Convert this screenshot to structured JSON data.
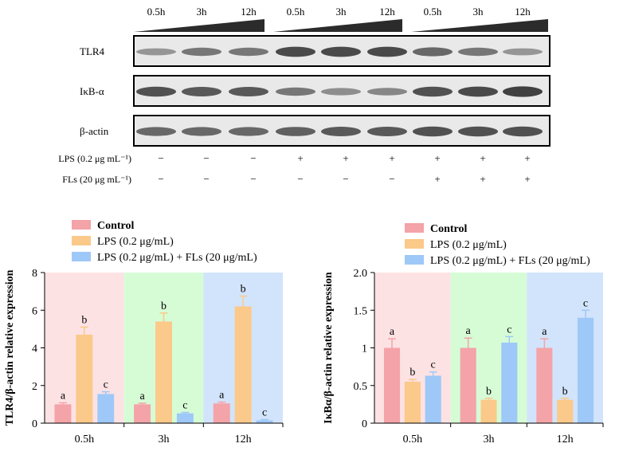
{
  "blot": {
    "time_labels": [
      "0.5h",
      "3h",
      "12h",
      "0.5h",
      "3h",
      "12h",
      "0.5h",
      "3h",
      "12h"
    ],
    "rows": [
      {
        "label": "TLR4",
        "bands": [
          0.35,
          0.55,
          0.55,
          0.85,
          0.85,
          0.85,
          0.65,
          0.55,
          0.35
        ]
      },
      {
        "label": "IκB-α",
        "bands": [
          0.8,
          0.75,
          0.75,
          0.55,
          0.4,
          0.45,
          0.8,
          0.85,
          0.9
        ]
      },
      {
        "label": "β-actin",
        "bands": [
          0.65,
          0.65,
          0.65,
          0.7,
          0.75,
          0.75,
          0.8,
          0.8,
          0.8
        ]
      }
    ],
    "treatments": [
      {
        "label": "LPS (0.2 μg mL⁻¹)",
        "marks": [
          "−",
          "−",
          "−",
          "+",
          "+",
          "+",
          "+",
          "+",
          "+"
        ]
      },
      {
        "label": "FLs (20 μg mL⁻¹)",
        "marks": [
          "−",
          "−",
          "−",
          "−",
          "−",
          "−",
          "+",
          "+",
          "+"
        ]
      }
    ]
  },
  "chart_data": [
    {
      "type": "bar",
      "categories": [
        "0.5h",
        "3h",
        "12h"
      ],
      "ylabel": "TLR4/β-actin relative expression",
      "ylim": [
        0,
        8
      ],
      "yticks": [
        "0",
        "2",
        "4",
        "6",
        "8"
      ],
      "legend": "top-left",
      "band_colors": [
        "#fde2e4",
        "#d6fcd6",
        "#d2e4fb"
      ],
      "series": [
        {
          "name": "Control",
          "color": "#f4a3a8",
          "values": [
            1.0,
            1.0,
            1.05
          ],
          "errors": [
            0.08,
            0.06,
            0.07
          ],
          "letters": [
            "a",
            "a",
            "a"
          ]
        },
        {
          "name": "LPS (0.2 μg/mL)",
          "color": "#fbc98a",
          "values": [
            4.7,
            5.4,
            6.2
          ],
          "errors": [
            0.4,
            0.45,
            0.55
          ],
          "letters": [
            "b",
            "b",
            "b"
          ]
        },
        {
          "name": "LPS (0.2 μg/mL) + FLs (20 μg/mL)",
          "color": "#9ec8f7",
          "values": [
            1.55,
            0.52,
            0.15
          ],
          "errors": [
            0.12,
            0.05,
            0.04
          ],
          "letters": [
            "c",
            "c",
            "c"
          ]
        }
      ]
    },
    {
      "type": "bar",
      "categories": [
        "0.5h",
        "3h",
        "12h"
      ],
      "ylabel": "IκBα/β-actin relative expression",
      "ylim": [
        0,
        2.0
      ],
      "yticks": [
        "0",
        "0.5",
        "1",
        "1.5",
        "2.0"
      ],
      "legend": "top-left",
      "band_colors": [
        "#fde2e4",
        "#d6fcd6",
        "#d2e4fb"
      ],
      "series": [
        {
          "name": "Control",
          "color": "#f4a3a8",
          "values": [
            1.0,
            1.0,
            1.0
          ],
          "errors": [
            0.12,
            0.13,
            0.12
          ],
          "letters": [
            "a",
            "a",
            "a"
          ]
        },
        {
          "name": "LPS (0.2 μg/mL)",
          "color": "#fbc98a",
          "values": [
            0.55,
            0.31,
            0.31
          ],
          "errors": [
            0.03,
            0.02,
            0.02
          ],
          "letters": [
            "b",
            "b",
            "b"
          ]
        },
        {
          "name": "LPS (0.2 μg/mL) + FLs (20 μg/mL)",
          "color": "#9ec8f7",
          "values": [
            0.63,
            1.07,
            1.4
          ],
          "errors": [
            0.05,
            0.08,
            0.1
          ],
          "letters": [
            "c",
            "c",
            "c"
          ]
        }
      ]
    }
  ]
}
